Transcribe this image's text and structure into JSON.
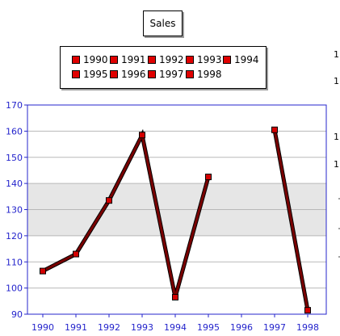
{
  "chart_data": {
    "type": "line",
    "title": "Sales",
    "categories": [
      "1990",
      "1991",
      "1992",
      "1993",
      "1994",
      "1995",
      "1996",
      "1997",
      "1998"
    ],
    "series": [
      {
        "values": [
          106.5,
          113,
          133.5,
          158.5,
          96.5,
          142.5,
          null,
          160.5,
          91.5
        ]
      }
    ],
    "ylim": [
      90,
      170
    ],
    "y_ticks": [
      90,
      100,
      110,
      120,
      130,
      140,
      150,
      160,
      170
    ],
    "shaded_band": [
      120,
      140
    ],
    "legend": [
      "1990",
      "1991",
      "1992",
      "1993",
      "1994",
      "1995",
      "1996",
      "1997",
      "1998"
    ],
    "legend_position": "top",
    "grid": true,
    "colors": {
      "line": "#7a0000",
      "marker": "#d40000",
      "axis": "#2424cc",
      "band": "#e6e6e6",
      "grid": "#b8b8b8"
    },
    "clipped_axis_marks": [
      "1",
      "1",
      "1",
      "1"
    ]
  }
}
